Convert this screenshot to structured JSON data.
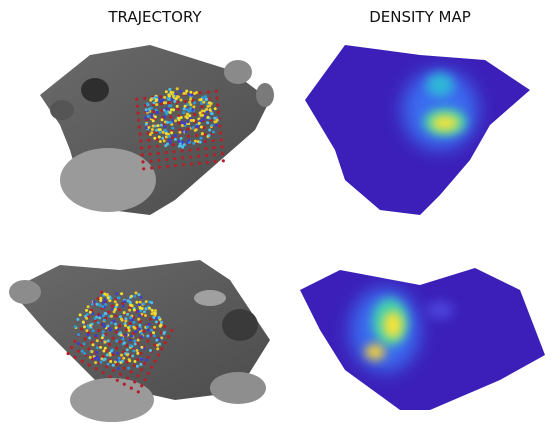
{
  "panels": {
    "left_title": "TRAJECTORY",
    "right_title": "DENSITY MAP"
  }
}
